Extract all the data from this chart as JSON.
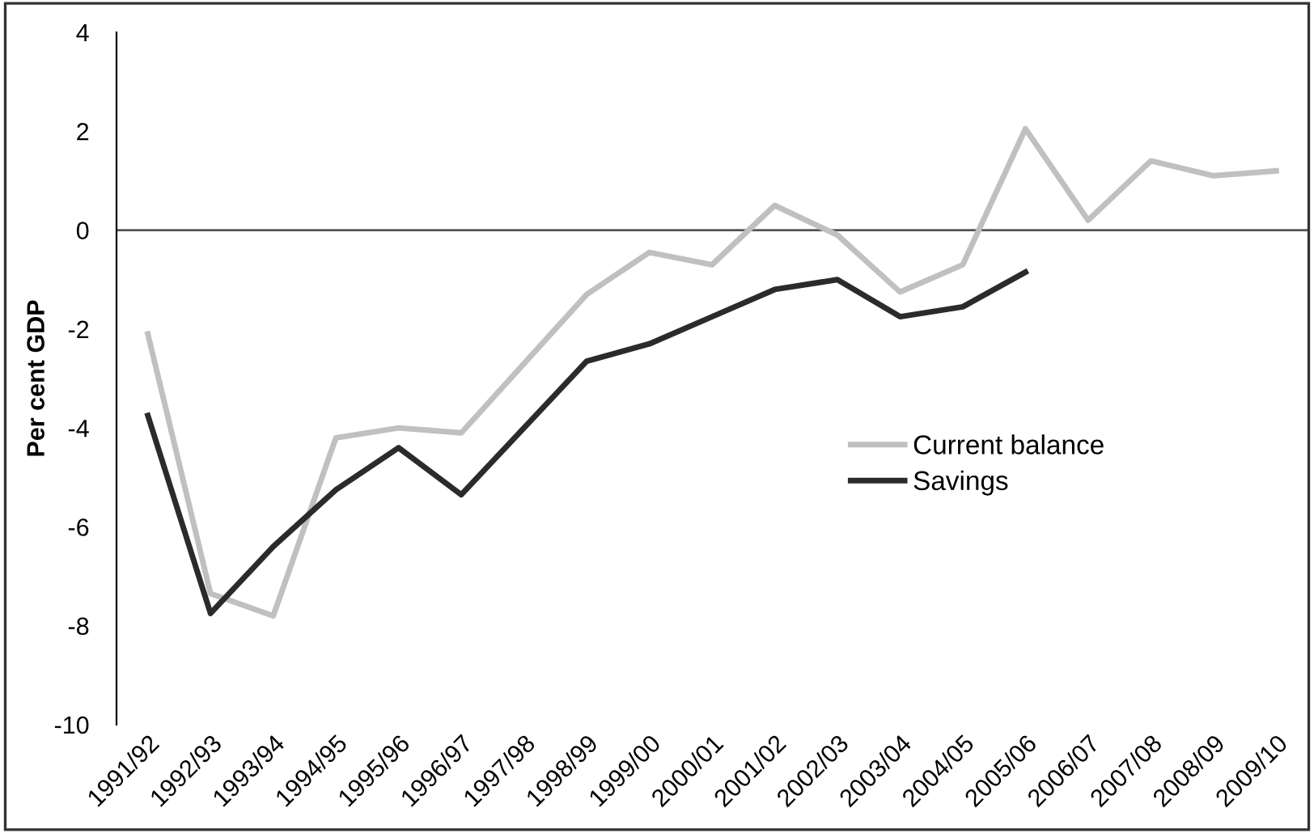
{
  "chart_data": {
    "type": "line",
    "ylabel": "Per cent GDP",
    "categories": [
      "1991/92",
      "1992/93",
      "1993/94",
      "1994/95",
      "1995/96",
      "1996/97",
      "1997/98",
      "1998/99",
      "1999/00",
      "2000/01",
      "2001/02",
      "2002/03",
      "2003/04",
      "2004/05",
      "2005/06",
      "2006/07",
      "2007/08",
      "2008/09",
      "2009/10"
    ],
    "series": [
      {
        "name": "Current balance",
        "color": "#c0c0c0",
        "values": [
          -2.1,
          -7.35,
          -7.8,
          -4.2,
          -4.0,
          -4.1,
          -2.7,
          -1.3,
          -0.45,
          -0.7,
          0.5,
          -0.1,
          -1.25,
          -0.7,
          2.05,
          0.2,
          1.4,
          1.1,
          1.2
        ]
      },
      {
        "name": "Savings",
        "color": "#2b2b2b",
        "values": [
          -3.75,
          -7.75,
          -6.4,
          -5.25,
          -4.4,
          -5.35,
          -4.0,
          -2.65,
          -2.3,
          -1.75,
          -1.2,
          -1.0,
          -1.75,
          -1.55,
          -0.85,
          null,
          null,
          null,
          null
        ]
      }
    ],
    "ylim": [
      -10,
      4
    ],
    "yticks": [
      -10,
      -8,
      -6,
      -4,
      -2,
      0,
      2,
      4
    ],
    "ref_lines": [
      {
        "axis": "y",
        "value": 0,
        "color": "#555555"
      }
    ],
    "legend": "center right",
    "grid": false,
    "marker": "none",
    "line_style": "solid"
  }
}
